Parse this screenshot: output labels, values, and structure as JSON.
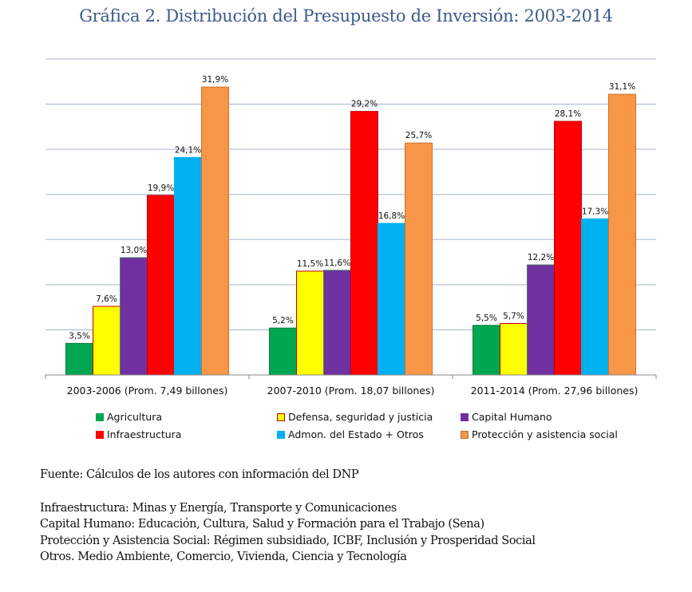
{
  "chart_data": {
    "type": "bar",
    "title": "Gráfica 2. Distribución del Presupuesto de Inversión: 2003-2014",
    "xlabel": "",
    "ylabel": "",
    "ylim": [
      0,
      35
    ],
    "ygrid_step": 5,
    "grid": true,
    "y_tick_labels_shown": false,
    "legend_position": "bottom",
    "categories": [
      "2003-2006 (Prom. 7,49 billones)",
      "2007-2010 (Prom. 18,07 billones)",
      "2011-2014 (Prom. 27,96 billones)"
    ],
    "series": [
      {
        "name": "Agricultura",
        "color": "#00a650",
        "values": [
          3.5,
          5.2,
          5.5
        ],
        "labels": [
          "3,5%",
          "5,2%",
          "5,5%"
        ]
      },
      {
        "name": "Defensa, seguridad y justicia",
        "color": "#ffff00",
        "values": [
          7.6,
          11.5,
          5.7
        ],
        "labels": [
          "7,6%",
          "11,5%",
          "5,7%"
        ]
      },
      {
        "name": "Capital Humano",
        "color": "#7030a0",
        "values": [
          13.0,
          11.6,
          12.2
        ],
        "labels": [
          "13,0%",
          "11,6%",
          "12,2%"
        ]
      },
      {
        "name": "Infraestructura",
        "color": "#ff0000",
        "values": [
          19.9,
          29.2,
          28.1
        ],
        "labels": [
          "19,9%",
          "29,2%",
          "28,1%"
        ]
      },
      {
        "name": "Admon. del Estado + Otros",
        "color": "#00b0f0",
        "values": [
          24.1,
          16.8,
          17.3
        ],
        "labels": [
          "24,1%",
          "16,8%",
          "17,3%"
        ]
      },
      {
        "name": "Protección y asistencia social",
        "color": "#f79646",
        "values": [
          31.9,
          25.7,
          31.1
        ],
        "labels": [
          "31,9%",
          "25,7%",
          "31,1%"
        ]
      }
    ]
  },
  "notes": {
    "source": "Fuente: Cálculos de los autores con información del DNP",
    "definitions": [
      "Infraestructura: Minas y Energía, Transporte y Comunicaciones",
      "Capital Humano: Educación, Cultura, Salud y Formación para el Trabajo (Sena)",
      "Protección y Asistencia Social: Régimen subsidiado, ICBF, Inclusión y Prosperidad Social",
      "Otros. Medio Ambiente, Comercio, Vivienda, Ciencia y Tecnología"
    ]
  }
}
